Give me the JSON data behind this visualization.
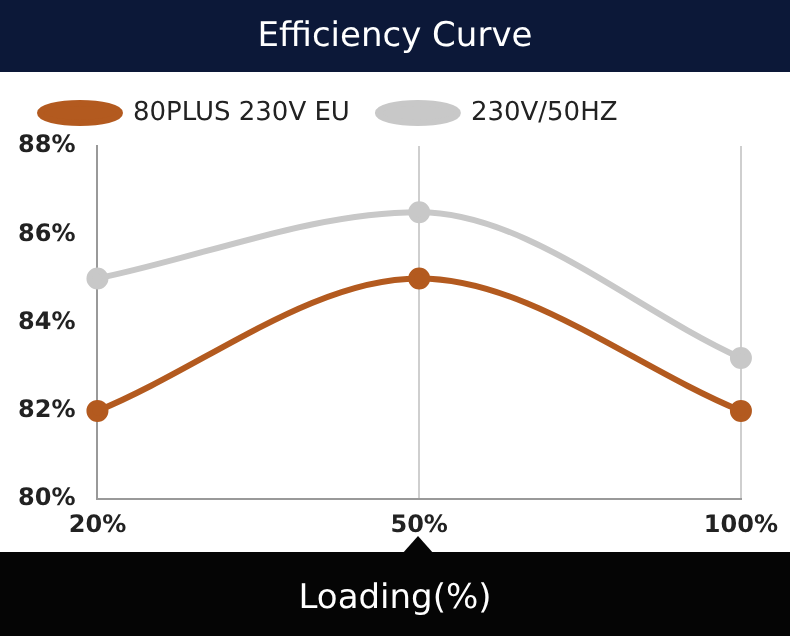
{
  "chart_data": {
    "type": "line",
    "title": "Efficiency Curve",
    "xlabel": "Loading(%)",
    "categories": [
      "20%",
      "50%",
      "100%"
    ],
    "series": [
      {
        "name": "80PLUS 230V EU",
        "color": "#b35a1f",
        "values": [
          82,
          85,
          82
        ]
      },
      {
        "name": "230V/50HZ",
        "color": "#c8c8c8",
        "values": [
          85,
          86.5,
          83.2
        ]
      }
    ],
    "ylim": [
      80,
      88
    ],
    "yticks": [
      {
        "value": 80,
        "label": "80%"
      },
      {
        "value": 82,
        "label": "82%"
      },
      {
        "value": 84,
        "label": "84%"
      },
      {
        "value": 86,
        "label": "86%"
      },
      {
        "value": 88,
        "label": "88%"
      }
    ],
    "grid": "x",
    "legend": "top",
    "marker": "circle"
  }
}
